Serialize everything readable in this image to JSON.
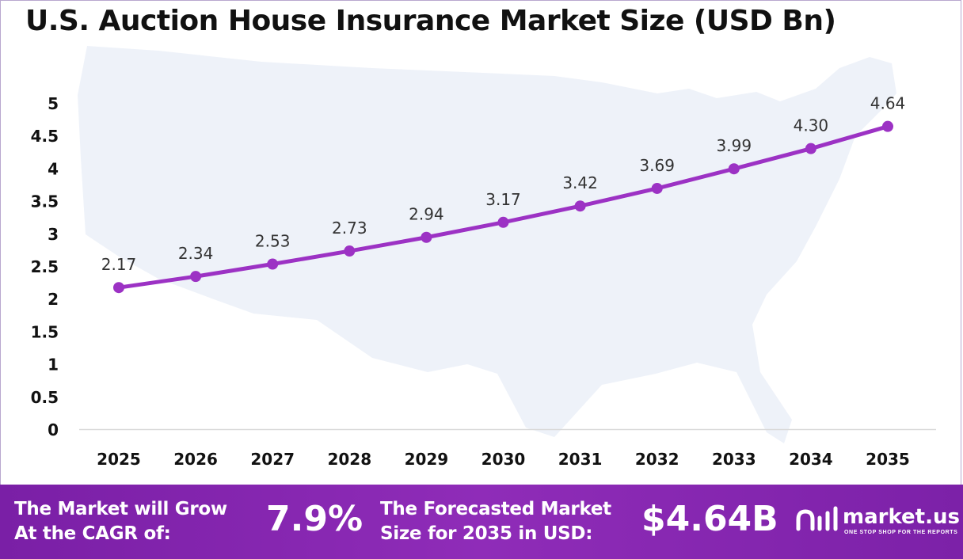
{
  "chart_data": {
    "type": "line",
    "title": "U.S. Auction House Insurance Market Size (USD Bn)",
    "x": [
      "2025",
      "2026",
      "2027",
      "2028",
      "2029",
      "2030",
      "2031",
      "2032",
      "2033",
      "2034",
      "2035"
    ],
    "series": [
      {
        "values": [
          2.17,
          2.34,
          2.53,
          2.73,
          2.94,
          3.17,
          3.42,
          3.69,
          3.99,
          4.3,
          4.64
        ]
      }
    ],
    "data_labels": [
      "2.17",
      "2.34",
      "2.53",
      "2.73",
      "2.94",
      "3.17",
      "3.42",
      "3.69",
      "3.99",
      "4.30",
      "4.64"
    ],
    "y_ticks": [
      "0",
      "0.5",
      "1",
      "1.5",
      "2",
      "2.5",
      "3",
      "3.5",
      "4",
      "4.5",
      "5"
    ],
    "ylim": [
      0,
      5
    ],
    "grid": false,
    "xlabel": "",
    "ylabel": "",
    "line_color": "#9c32c4"
  },
  "footer": {
    "cagr_label_line1": "The Market will Grow",
    "cagr_label_line2": "At the CAGR of:",
    "cagr_value": "7.9%",
    "forecast_label_line1": "The Forecasted Market",
    "forecast_label_line2": "Size for 2035 in USD:",
    "forecast_value": "$4.64B"
  },
  "logo": {
    "name": "market.us",
    "tagline": "ONE STOP SHOP FOR THE REPORTS"
  }
}
